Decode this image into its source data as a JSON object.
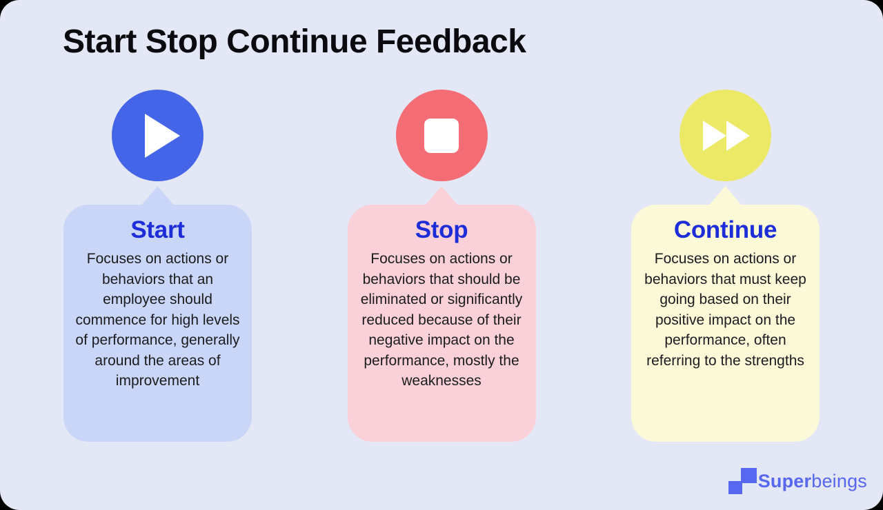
{
  "page": {
    "title": "Start Stop Continue Feedback",
    "background": "#e3e7f6",
    "outer_background": "#000000"
  },
  "columns": [
    {
      "id": "start",
      "icon": "play-icon",
      "circle_color": "#4565e8",
      "card_color": "#c9d6f7",
      "heading": "Start",
      "heading_color": "#1d2ed9",
      "body": "Focuses on actions or behaviors that an employee should commence for high levels of performance, generally around the areas of improvement"
    },
    {
      "id": "stop",
      "icon": "stop-icon",
      "circle_color": "#f56d74",
      "card_color": "#fad1d8",
      "heading": "Stop",
      "heading_color": "#1d2ed9",
      "body": "Focuses on actions or behaviors that should be eliminated or significantly reduced because of their negative impact on the performance, mostly the weaknesses"
    },
    {
      "id": "continue",
      "icon": "fast-forward-icon",
      "circle_color": "#ece967",
      "card_color": "#fcf9d8",
      "heading": "Continue",
      "heading_color": "#1d2ed9",
      "body": "Focuses on actions or behaviors that must keep going based on their positive impact on the performance, often referring to the strengths"
    }
  ],
  "footer": {
    "brand_bold": "Super",
    "brand_regular": "beings",
    "brand_color": "#5767ef"
  }
}
